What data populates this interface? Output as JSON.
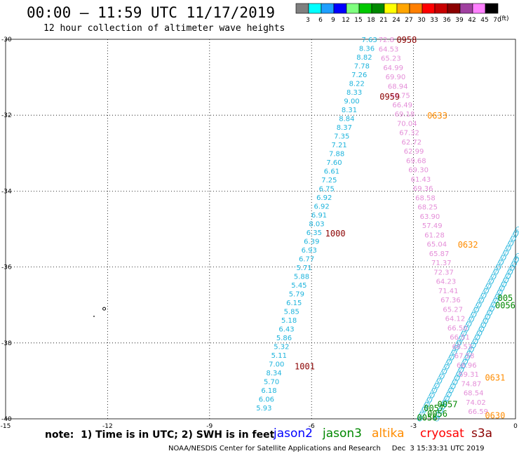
{
  "header": {
    "title": "00:00 – 11:59 UTC 11/17/2019",
    "subtitle": "12 hour collection of altimeter wave heights"
  },
  "colorbar": {
    "units": "(ft)",
    "bins": [
      {
        "label": "3",
        "color": "#7f7f7f"
      },
      {
        "label": "6",
        "color": "#00ffff"
      },
      {
        "label": "9",
        "color": "#1e9fff"
      },
      {
        "label": "12",
        "color": "#0000ff"
      },
      {
        "label": "15",
        "color": "#7fff7f"
      },
      {
        "label": "18",
        "color": "#00c800"
      },
      {
        "label": "21",
        "color": "#008800"
      },
      {
        "label": "24",
        "color": "#ffff00"
      },
      {
        "label": "27",
        "color": "#ffa500"
      },
      {
        "label": "30",
        "color": "#ff7f00"
      },
      {
        "label": "33",
        "color": "#ff0000"
      },
      {
        "label": "36",
        "color": "#c80000"
      },
      {
        "label": "39",
        "color": "#8b0000"
      },
      {
        "label": "42",
        "color": "#a040a0"
      },
      {
        "label": "45",
        "color": "#ff80ff"
      },
      {
        "label": "70",
        "color": "#000000"
      }
    ]
  },
  "map": {
    "lon_ticks": [
      "-15",
      "-12",
      "-9",
      "-6",
      "-3",
      "0"
    ],
    "lat_ticks": [
      "-30",
      "-32",
      "-34",
      "-36",
      "-38",
      "-40"
    ],
    "lon_range": [
      -15,
      0
    ],
    "lat_range": [
      -40,
      -30
    ],
    "grid": true,
    "tracks": [
      {
        "satellite": "jason2",
        "color": "#1eb4dc",
        "values": [
          "7.63",
          "8.36",
          "8.82",
          "7.78",
          "7.26",
          "8.22",
          "8.33",
          "9.00",
          "8.31",
          "8.84",
          "8.37",
          "7.35",
          "7.21",
          "7.88",
          "7.60",
          "6.61",
          "7.25",
          "6.75",
          "6.92",
          "6.92",
          "6.91",
          "8.03",
          "6.35",
          "6.39",
          "6.93",
          "6.77",
          "5.71",
          "5.88",
          "5.45",
          "5.79",
          "6.15",
          "5.85",
          "5.18",
          "6.43",
          "5.86",
          "5.32",
          "5.11",
          "7.00",
          "8.34",
          "5.70",
          "6.18",
          "6.06",
          "5.93"
        ],
        "lon_start": -4.3,
        "lat_start": -30.0,
        "lon_end": -7.4,
        "lat_end": -39.7
      },
      {
        "satellite": "cryosat",
        "color": "#e48ed8",
        "values": [
          "72.8",
          "64.53",
          "65.23",
          "64.99",
          "69.90",
          "68.94",
          "68.75",
          "66.49",
          "69.18",
          "70.04",
          "67.32",
          "62.72",
          "62.99",
          "69.68",
          "69.30",
          "61.43",
          "69.36",
          "68.58",
          "68.25",
          "63.90",
          "57.49",
          "61.28",
          "65.04",
          "65.87",
          "71.37",
          "72.37",
          "64.23",
          "71.41",
          "67.36",
          "65.27",
          "64.12",
          "66.50",
          "66.51",
          "66.53",
          "67.58",
          "66.96",
          "69.31",
          "74.87",
          "68.54",
          "74.02",
          "66.59"
        ],
        "lon_start": -3.8,
        "lat_start": -30.0,
        "lon_end": -1.1,
        "lat_end": -39.8
      }
    ],
    "time_labels": [
      {
        "text": "0958",
        "color": "#8b0000",
        "lon": -3.2,
        "lat": -30.0
      },
      {
        "text": "0959",
        "color": "#8b0000",
        "lon": -3.7,
        "lat": -31.5
      },
      {
        "text": "1000",
        "color": "#8b0000",
        "lon": -5.3,
        "lat": -35.1
      },
      {
        "text": "1001",
        "color": "#8b0000",
        "lon": -6.2,
        "lat": -38.6
      },
      {
        "text": "0633",
        "color": "#ff8c00",
        "lon": -2.3,
        "lat": -32.0
      },
      {
        "text": "0632",
        "color": "#ff8c00",
        "lon": -1.4,
        "lat": -35.4
      },
      {
        "text": "0631",
        "color": "#ff8c00",
        "lon": -0.6,
        "lat": -38.9
      },
      {
        "text": "0630",
        "color": "#ff8c00",
        "lon": -0.6,
        "lat": -39.9
      },
      {
        "text": "005",
        "color": "#008800",
        "lon": -0.3,
        "lat": -36.8
      },
      {
        "text": "0056",
        "color": "#008800",
        "lon": -0.3,
        "lat": -37.0
      },
      {
        "text": "0057",
        "color": "#008800",
        "lon": -2.0,
        "lat": -39.6
      },
      {
        "text": "0057",
        "color": "#008800",
        "lon": -2.4,
        "lat": -39.7
      },
      {
        "text": "0056",
        "color": "#008800",
        "lon": -2.3,
        "lat": -39.85
      },
      {
        "text": "0056",
        "color": "#008800",
        "lon": -2.6,
        "lat": -39.95
      }
    ]
  },
  "note": "note:  1) Time is in UTC; 2) SWH is in feet",
  "legend": [
    {
      "name": "jason2",
      "color": "#0000ff"
    },
    {
      "name": "jason3",
      "color": "#008800"
    },
    {
      "name": "altika",
      "color": "#ff8c00"
    },
    {
      "name": "cryosat",
      "color": "#ff0000"
    },
    {
      "name": "s3a",
      "color": "#8b0000"
    }
  ],
  "footer": "NOAA/NESDIS Center for Satellite Applications and Research     Dec  3 15:33:31 UTC 2019"
}
